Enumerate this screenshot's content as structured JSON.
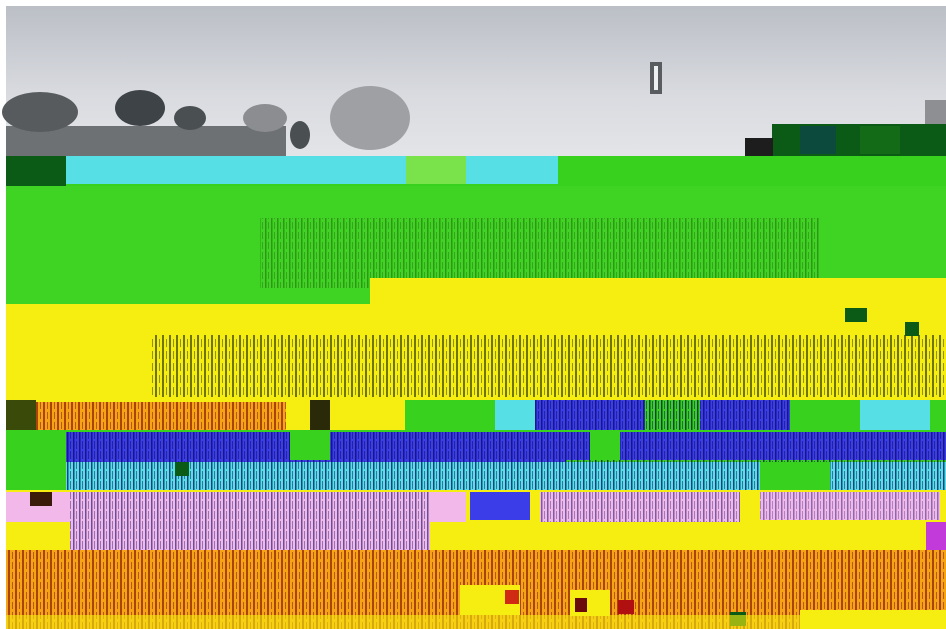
{
  "image": {
    "kind": "photo",
    "subject": "",
    "colors": {
      "sky": "#c9ccd2",
      "sky_light": "#dfe1e5",
      "tree_dark": "#4a4f52",
      "roof": "#6a6d70",
      "green": "#38d21e",
      "dark_green": "#0b5a15",
      "cyan": "#56e0e6",
      "yellow": "#f6ee10",
      "blue": "#2f2ee8",
      "pink": "#f2b8ea",
      "orange": "#f5a415",
      "red": "#d02a15",
      "olive": "#3a4a08"
    }
  }
}
